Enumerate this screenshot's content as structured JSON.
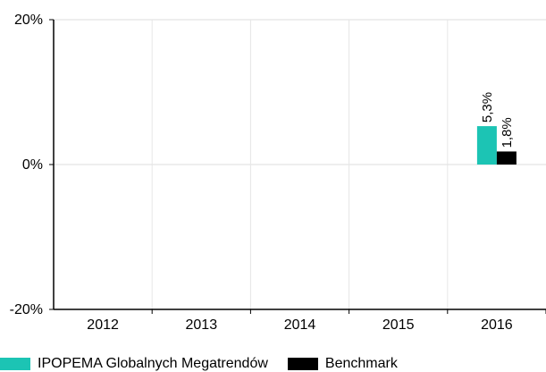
{
  "chart_data": {
    "type": "bar",
    "categories": [
      "2012",
      "2013",
      "2014",
      "2015",
      "2016"
    ],
    "series": [
      {
        "name": "IPOPEMA Globalnych Megatrendów",
        "color": "#1cc4b4",
        "values": [
          null,
          null,
          null,
          null,
          5.3
        ],
        "labels": [
          "",
          "",
          "",
          "",
          "5,3%"
        ]
      },
      {
        "name": "Benchmark",
        "color": "#000000",
        "values": [
          null,
          null,
          null,
          null,
          1.8
        ],
        "labels": [
          "",
          "",
          "",
          "",
          "1,8%"
        ]
      }
    ],
    "ylim": [
      -20,
      20
    ],
    "yticks": [
      {
        "value": 20,
        "label": "20%"
      },
      {
        "value": 0,
        "label": "0%"
      },
      {
        "value": -20,
        "label": "-20%"
      }
    ],
    "grid": true,
    "legend_position": "bottom-left",
    "title": "",
    "xlabel": "",
    "ylabel": ""
  }
}
